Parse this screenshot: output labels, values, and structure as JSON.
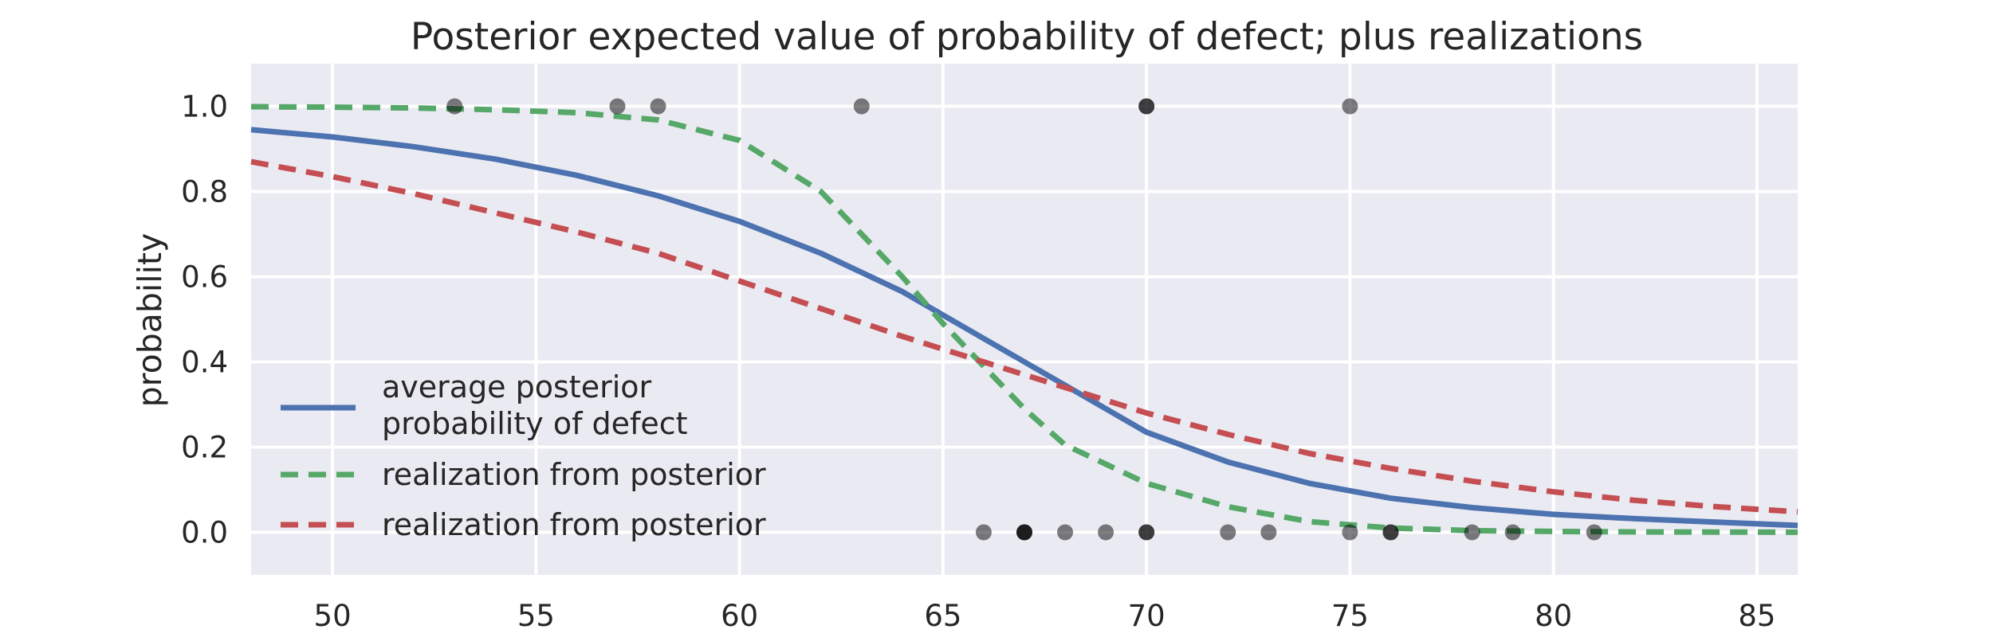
{
  "chart_data": {
    "type": "line",
    "title": "Posterior expected value of probability of defect; plus realizations",
    "xlabel": "",
    "ylabel": "probability",
    "xlim": [
      48,
      86
    ],
    "ylim": [
      -0.1,
      1.1
    ],
    "xticks": [
      50,
      55,
      60,
      65,
      70,
      75,
      80,
      85
    ],
    "yticks": [
      0.0,
      0.2,
      0.4,
      0.6,
      0.8,
      1.0
    ],
    "ytick_labels": [
      "0.0",
      "0.2",
      "0.4",
      "0.6",
      "0.8",
      "1.0"
    ],
    "grid": true,
    "legend_position": "lower-left",
    "x": [
      48,
      50,
      52,
      54,
      56,
      58,
      60,
      62,
      64,
      65,
      66,
      67,
      68,
      70,
      72,
      74,
      76,
      78,
      80,
      82,
      84,
      86
    ],
    "series": [
      {
        "name": "average posterior probability of defect",
        "name_lines": [
          "average posterior",
          "probability of defect"
        ],
        "style": "solid",
        "color": "#4c72b0",
        "values": [
          0.945,
          0.928,
          0.905,
          0.876,
          0.838,
          0.79,
          0.73,
          0.655,
          0.565,
          0.51,
          0.455,
          0.4,
          0.345,
          0.235,
          0.165,
          0.115,
          0.08,
          0.058,
          0.042,
          0.032,
          0.024,
          0.016
        ]
      },
      {
        "name": "realization from posterior",
        "style": "dashed",
        "color": "#55a868",
        "values": [
          0.999,
          0.998,
          0.996,
          0.992,
          0.985,
          0.968,
          0.92,
          0.8,
          0.6,
          0.49,
          0.39,
          0.29,
          0.205,
          0.115,
          0.06,
          0.025,
          0.01,
          0.004,
          0.002,
          0.001,
          0.0005,
          0.0002
        ]
      },
      {
        "name": "realization from posterior",
        "style": "dashed",
        "color": "#c44e52",
        "values": [
          0.87,
          0.835,
          0.795,
          0.75,
          0.705,
          0.655,
          0.59,
          0.525,
          0.46,
          0.43,
          0.4,
          0.37,
          0.34,
          0.28,
          0.23,
          0.185,
          0.15,
          0.12,
          0.095,
          0.075,
          0.06,
          0.048
        ]
      }
    ],
    "scatter": {
      "color": "#000000",
      "points": [
        {
          "x": 53,
          "y": 1
        },
        {
          "x": 57,
          "y": 1
        },
        {
          "x": 58,
          "y": 1
        },
        {
          "x": 63,
          "y": 1
        },
        {
          "x": 70,
          "y": 1
        },
        {
          "x": 70,
          "y": 1
        },
        {
          "x": 75,
          "y": 1
        },
        {
          "x": 66,
          "y": 0
        },
        {
          "x": 67,
          "y": 0
        },
        {
          "x": 67,
          "y": 0
        },
        {
          "x": 67,
          "y": 0
        },
        {
          "x": 68,
          "y": 0
        },
        {
          "x": 69,
          "y": 0
        },
        {
          "x": 70,
          "y": 0
        },
        {
          "x": 70,
          "y": 0
        },
        {
          "x": 72,
          "y": 0
        },
        {
          "x": 73,
          "y": 0
        },
        {
          "x": 75,
          "y": 0
        },
        {
          "x": 76,
          "y": 0
        },
        {
          "x": 76,
          "y": 0
        },
        {
          "x": 78,
          "y": 0
        },
        {
          "x": 79,
          "y": 0
        },
        {
          "x": 81,
          "y": 0
        }
      ]
    },
    "colors": {
      "plot_background": "#eaeaf2",
      "grid": "#ffffff",
      "text": "#262626"
    }
  }
}
